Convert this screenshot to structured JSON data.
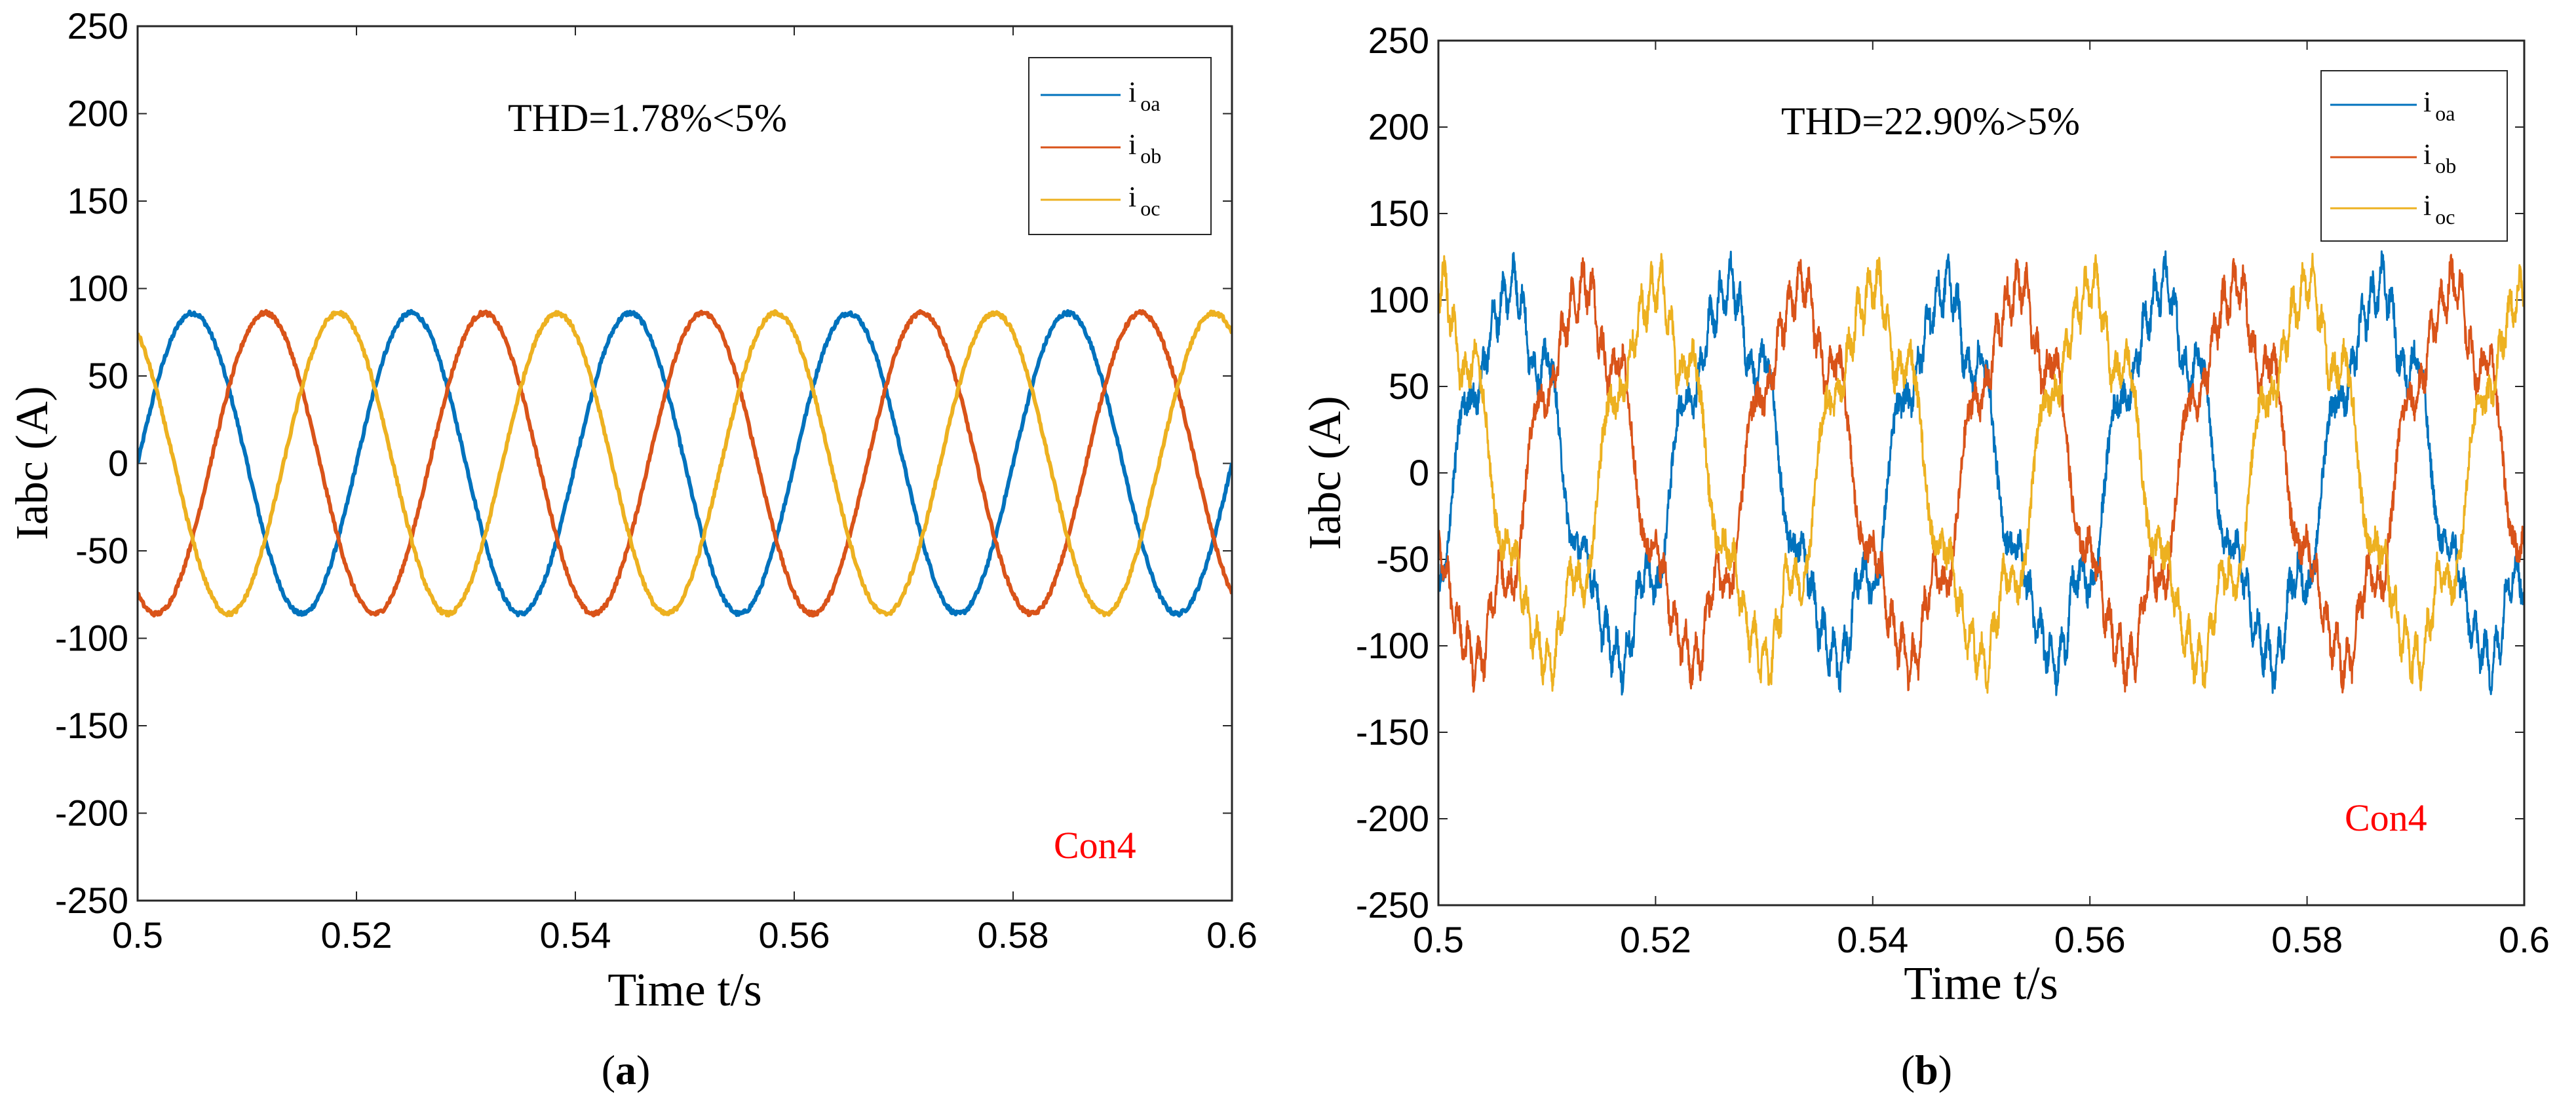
{
  "panels": [
    {
      "label_letter": "a",
      "chart_data": {
        "type": "line",
        "title": "",
        "xlabel": "Time t/s",
        "ylabel": "Iabc (A)",
        "xlim": [
          0.5,
          0.6
        ],
        "ylim": [
          -250,
          250
        ],
        "x_ticks": [
          "0.5",
          "0.52",
          "0.54",
          "0.56",
          "0.58",
          "0.6"
        ],
        "y_ticks": [
          "250",
          "200",
          "150",
          "100",
          "50",
          "0",
          "-50",
          "-100",
          "-150",
          "-200",
          "-250"
        ],
        "grid": false,
        "legend_position": "top-right",
        "fundamental_frequency_hz": 50,
        "series": [
          {
            "name": "i oa",
            "main": "i",
            "sub": "oa",
            "color": "#0072BD",
            "amplitude": 86,
            "phase_deg": 0
          },
          {
            "name": "i ob",
            "main": "i",
            "sub": "ob",
            "color": "#D95319",
            "amplitude": 86,
            "phase_deg": -120
          },
          {
            "name": "i oc",
            "main": "i",
            "sub": "oc",
            "color": "#EDB120",
            "amplitude": 86,
            "phase_deg": 120
          }
        ],
        "harmonic_distortion": "low",
        "annotations": [
          {
            "text": "THD=1.78%<5%",
            "color": "#000000"
          },
          {
            "text": "Con4",
            "color": "#FF0000"
          }
        ]
      }
    },
    {
      "label_letter": "b",
      "chart_data": {
        "type": "line",
        "title": "",
        "xlabel": "Time t/s",
        "ylabel": "Iabc (A)",
        "xlim": [
          0.5,
          0.6
        ],
        "ylim": [
          -250,
          250
        ],
        "x_ticks": [
          "0.5",
          "0.52",
          "0.54",
          "0.56",
          "0.58",
          "0.6"
        ],
        "y_ticks": [
          "250",
          "200",
          "150",
          "100",
          "50",
          "0",
          "-50",
          "-100",
          "-150",
          "-200",
          "-250"
        ],
        "grid": false,
        "legend_position": "top-right",
        "fundamental_frequency_hz": 50,
        "series": [
          {
            "name": "i oa",
            "main": "i",
            "sub": "oa",
            "color": "#0072BD",
            "amplitude": 100,
            "phase_deg": -30
          },
          {
            "name": "i ob",
            "main": "i",
            "sub": "ob",
            "color": "#D95319",
            "amplitude": 100,
            "phase_deg": -150
          },
          {
            "name": "i oc",
            "main": "i",
            "sub": "oc",
            "color": "#EDB120",
            "amplitude": 100,
            "phase_deg": 90
          }
        ],
        "harmonic_distortion": "high",
        "annotations": [
          {
            "text": "THD=22.90%>5%",
            "color": "#000000"
          },
          {
            "text": "Con4",
            "color": "#FF0000"
          }
        ]
      }
    }
  ]
}
